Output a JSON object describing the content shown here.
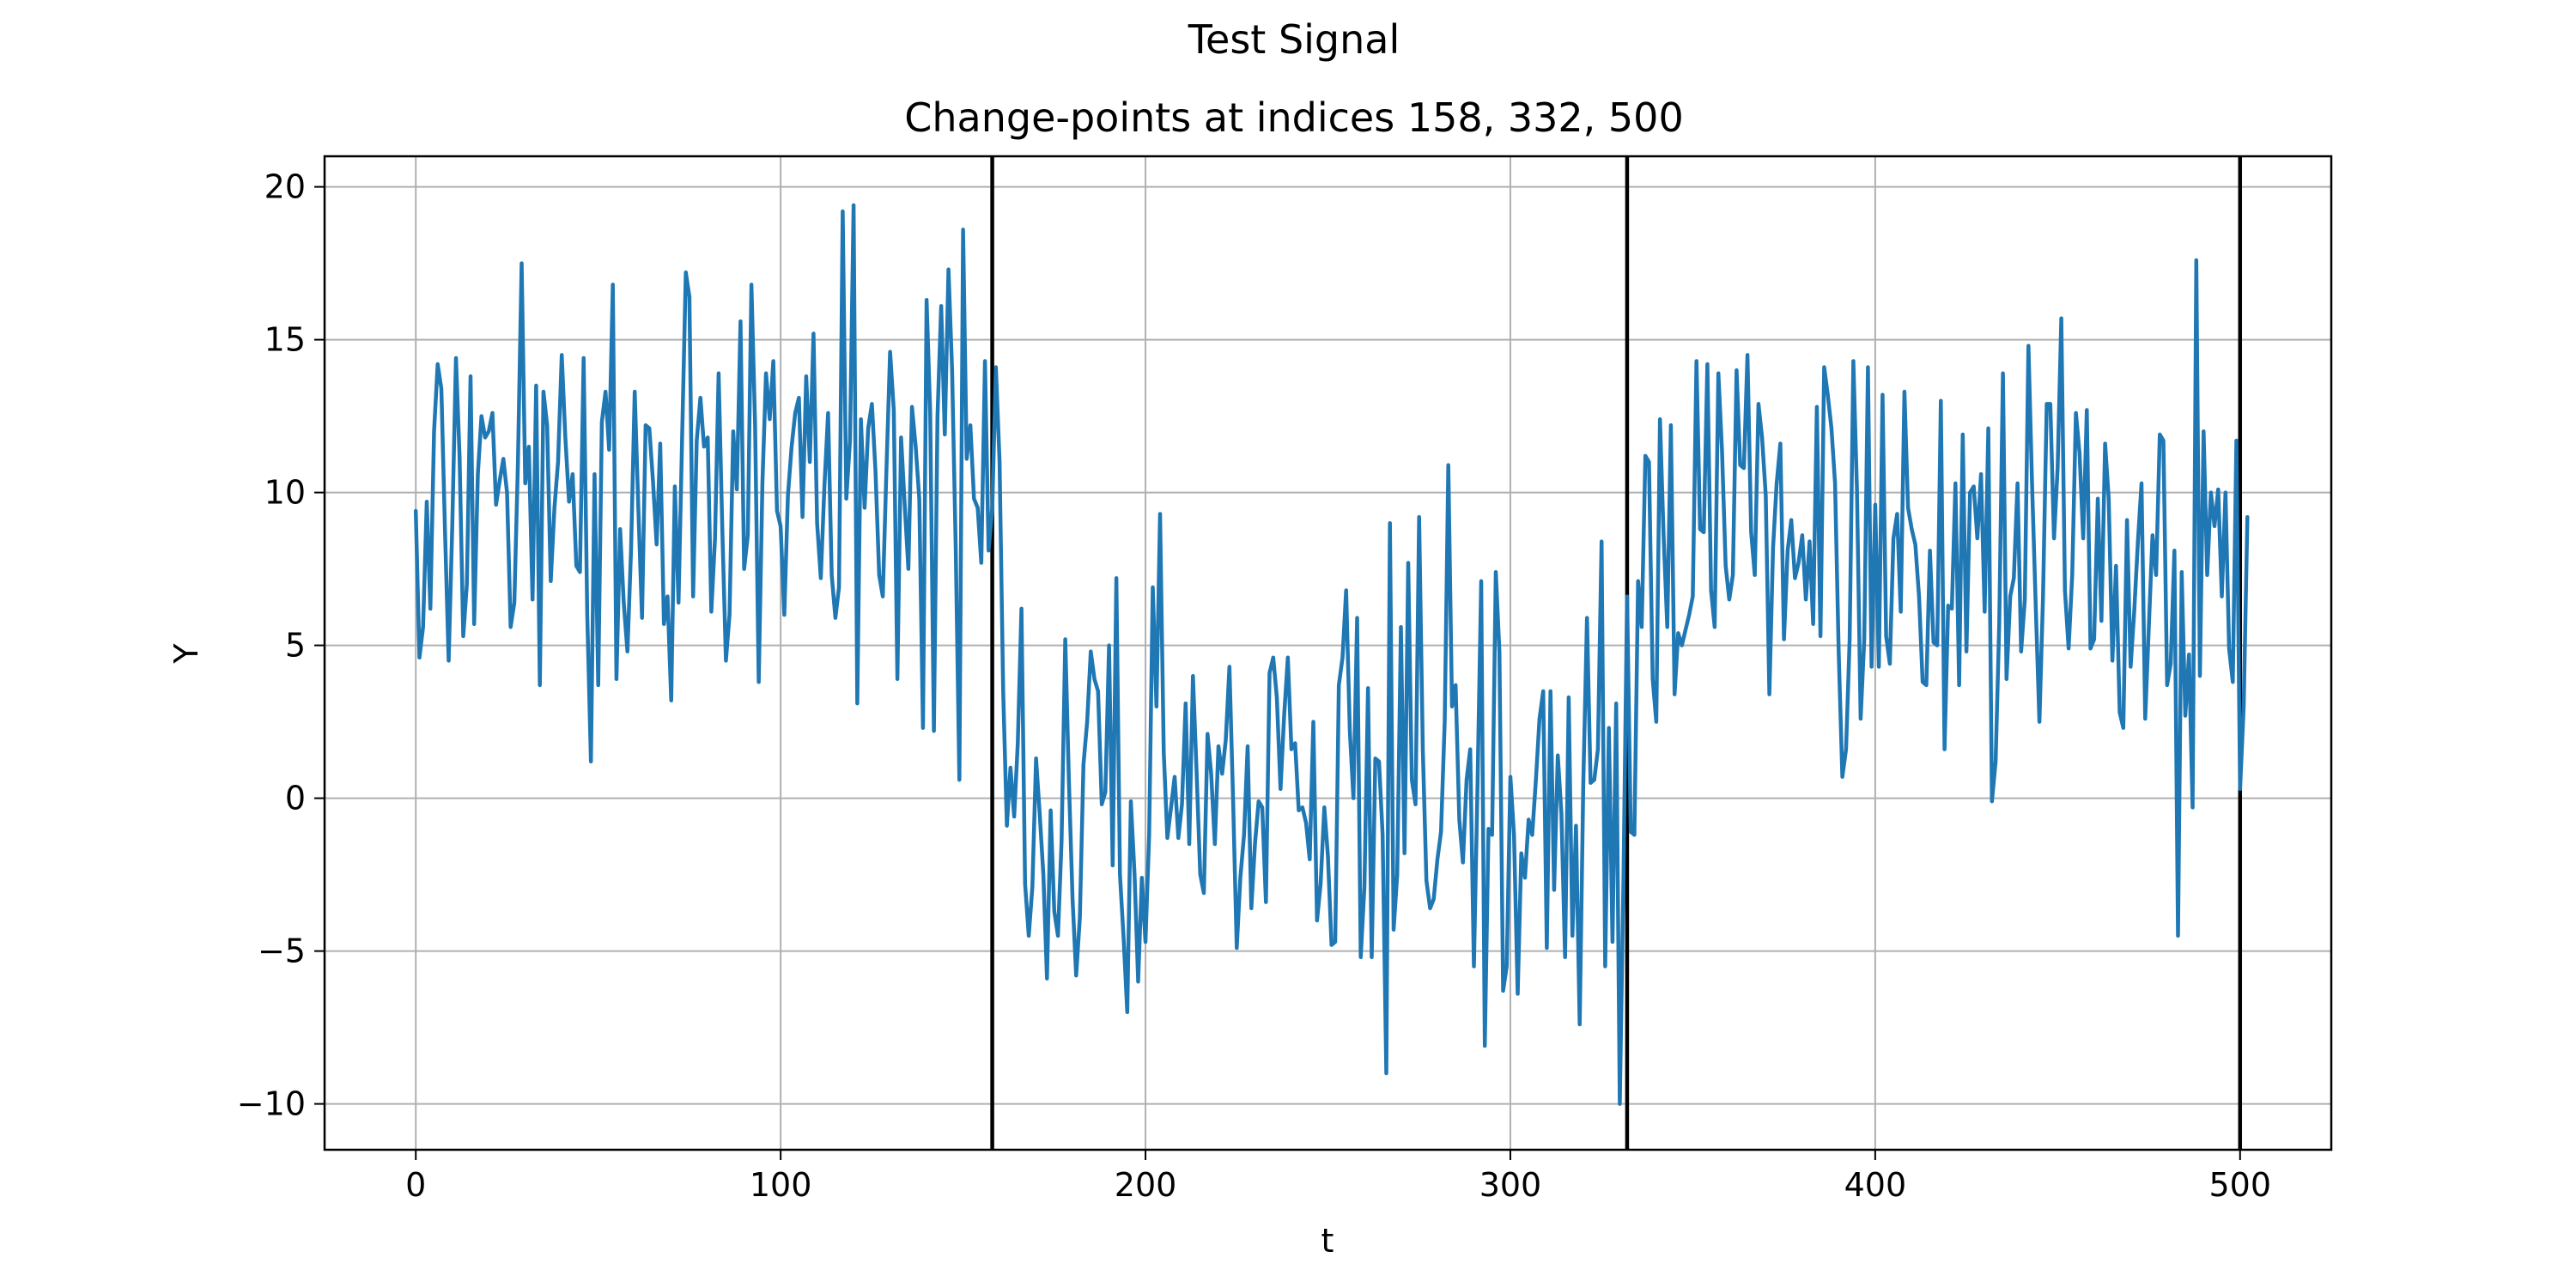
{
  "chart_data": {
    "type": "line",
    "suptitle": "Test Signal",
    "title": "Change-points at indices 158, 332, 500",
    "xlabel": "t",
    "ylabel": "Y",
    "xlim": [
      -25,
      525
    ],
    "ylim": [
      -11.5,
      21
    ],
    "x_ticks": [
      0,
      100,
      200,
      300,
      400,
      500
    ],
    "y_ticks": [
      -10,
      -5,
      0,
      5,
      10,
      15,
      20
    ],
    "x_tick_labels": [
      "0",
      "100",
      "200",
      "300",
      "400",
      "500"
    ],
    "y_tick_labels": [
      "−10",
      "−5",
      "0",
      "5",
      "10",
      "15",
      "20"
    ],
    "grid": true,
    "line_color": "#1f77b4",
    "changepoint_color": "#000000",
    "changepoints": [
      158,
      332,
      500
    ],
    "x_start": 0,
    "x_step": 1,
    "series": [
      {
        "values": [
          9.4,
          4.6,
          5.6,
          9.7,
          6.2,
          12.0,
          14.2,
          13.4,
          8.8,
          4.5,
          8.9,
          14.4,
          11.2,
          5.3,
          7.0,
          13.8,
          5.7,
          10.6,
          12.5,
          11.8,
          12.0,
          12.6,
          9.6,
          10.4,
          11.1,
          10.0,
          5.6,
          6.4,
          11.0,
          17.5,
          10.3,
          11.5,
          6.5,
          13.5,
          3.7,
          13.3,
          12.2,
          7.1,
          9.5,
          11.0,
          14.5,
          11.8,
          9.7,
          10.6,
          7.6,
          7.4,
          14.4,
          6.0,
          1.2,
          10.6,
          3.7,
          12.3,
          13.3,
          11.4,
          16.8,
          3.9,
          8.8,
          6.4,
          4.8,
          8.1,
          13.3,
          9.5,
          5.9,
          12.2,
          12.1,
          10.4,
          8.3,
          11.6,
          5.7,
          6.6,
          3.2,
          10.2,
          6.4,
          11.8,
          17.2,
          16.4,
          6.6,
          11.7,
          13.1,
          11.5,
          11.8,
          6.1,
          8.5,
          13.9,
          8.8,
          4.5,
          6.0,
          12.0,
          10.1,
          15.6,
          7.5,
          8.6,
          16.8,
          12.2,
          3.8,
          10.3,
          13.9,
          12.4,
          14.3,
          9.4,
          8.9,
          6.0,
          9.9,
          11.5,
          12.6,
          13.1,
          9.2,
          13.8,
          11.0,
          15.2,
          9.0,
          7.2,
          10.2,
          12.6,
          7.3,
          5.9,
          6.9,
          19.2,
          9.8,
          11.7,
          19.4,
          3.1,
          12.4,
          9.5,
          12.1,
          12.9,
          10.7,
          7.3,
          6.6,
          10.8,
          14.6,
          12.7,
          3.9,
          11.8,
          9.6,
          7.5,
          12.8,
          11.5,
          9.8,
          2.3,
          16.3,
          12.6,
          2.2,
          12.5,
          16.1,
          11.9,
          17.3,
          14.0,
          8.1,
          0.6,
          18.6,
          11.1,
          12.2,
          9.8,
          9.5,
          7.7,
          14.3,
          8.1,
          9.5,
          14.1,
          11.0,
          3.5,
          -0.9,
          1.0,
          -0.6,
          1.8,
          6.2,
          -2.8,
          -4.5,
          -2.9,
          1.3,
          -0.5,
          -2.5,
          -5.9,
          -0.4,
          -3.7,
          -4.5,
          -1.4,
          5.2,
          0.6,
          -3.3,
          -5.8,
          -3.9,
          1.1,
          2.5,
          4.8,
          3.9,
          3.5,
          -0.2,
          0.2,
          5.0,
          -2.2,
          7.2,
          -2.5,
          -4.6,
          -7.0,
          -0.1,
          -2.5,
          -6.0,
          -2.6,
          -4.7,
          -1.2,
          6.9,
          3.0,
          9.3,
          1.5,
          -1.3,
          -0.3,
          0.7,
          -1.3,
          -0.2,
          3.1,
          -1.5,
          4.0,
          0.9,
          -2.5,
          -3.1,
          2.1,
          0.8,
          -1.5,
          1.7,
          0.8,
          1.9,
          4.3,
          0.0,
          -4.9,
          -2.6,
          -1.2,
          1.7,
          -3.6,
          -1.5,
          -0.1,
          -0.3,
          -3.4,
          4.1,
          4.6,
          3.3,
          0.3,
          2.7,
          4.6,
          1.6,
          1.8,
          -0.4,
          -0.3,
          -0.8,
          -2.0,
          2.5,
          -4.0,
          -2.8,
          -0.3,
          -1.9,
          -4.8,
          -4.7,
          3.7,
          4.6,
          6.8,
          2.2,
          0.0,
          5.9,
          -5.2,
          -2.9,
          3.6,
          -5.2,
          1.3,
          1.2,
          -1.2,
          -9.0,
          9.0,
          -4.3,
          -2.5,
          5.6,
          -1.8,
          7.7,
          0.6,
          -0.2,
          9.2,
          1.6,
          -2.7,
          -3.6,
          -3.3,
          -2.0,
          -1.1,
          2.5,
          10.9,
          3.0,
          3.7,
          -0.7,
          -2.1,
          0.6,
          1.6,
          -5.5,
          0.4,
          7.1,
          -8.1,
          -1.0,
          -1.2,
          7.4,
          4.8,
          -6.3,
          -5.5,
          0.7,
          -1.2,
          -6.4,
          -1.8,
          -2.6,
          -0.7,
          -1.2,
          0.6,
          2.6,
          3.5,
          -4.9,
          3.5,
          -3.0,
          1.4,
          -0.5,
          -5.2,
          3.3,
          -4.5,
          -0.9,
          -7.4,
          0.5,
          5.9,
          0.5,
          0.6,
          1.6,
          8.4,
          -5.5,
          2.3,
          -4.7,
          3.1,
          -10.0,
          -2.6,
          6.6,
          -1.1,
          -1.2,
          7.1,
          5.6,
          11.2,
          11.0,
          3.9,
          2.5,
          12.4,
          8.6,
          5.6,
          12.2,
          3.4,
          5.4,
          5.0,
          5.5,
          6.0,
          6.6,
          14.3,
          8.8,
          8.7,
          14.2,
          6.8,
          5.6,
          13.9,
          11.4,
          7.6,
          6.5,
          7.3,
          14.0,
          10.9,
          10.8,
          14.5,
          8.7,
          7.3,
          12.9,
          11.8,
          9.9,
          3.4,
          8.2,
          10.3,
          11.6,
          5.2,
          8.1,
          9.1,
          7.2,
          7.7,
          8.6,
          6.5,
          8.4,
          5.7,
          12.8,
          5.3,
          14.1,
          13.2,
          12.1,
          10.3,
          4.7,
          0.7,
          1.6,
          5.2,
          14.3,
          10.1,
          2.6,
          5.2,
          14.1,
          4.3,
          9.6,
          4.3,
          13.2,
          5.3,
          4.4,
          8.5,
          9.3,
          6.1,
          13.3,
          9.5,
          8.8,
          8.3,
          6.6,
          3.8,
          3.7,
          8.1,
          5.1,
          5.0,
          13.0,
          1.6,
          6.3,
          6.2,
          10.3,
          3.7,
          11.9,
          4.8,
          10.0,
          10.2,
          8.5,
          10.6,
          6.1,
          12.1,
          -0.1,
          1.2,
          5.7,
          13.9,
          3.9,
          6.6,
          7.2,
          10.3,
          4.8,
          6.5,
          14.8,
          10.2,
          6.3,
          2.5,
          6.6,
          12.9,
          12.9,
          8.5,
          10.8,
          15.7,
          6.8,
          4.9,
          7.3,
          12.6,
          11.3,
          8.5,
          12.7,
          4.9,
          5.2,
          9.8,
          5.8,
          11.6,
          9.8,
          4.5,
          7.6,
          2.8,
          2.3,
          9.1,
          4.3,
          6.1,
          8.4,
          10.3,
          2.6,
          5.6,
          8.6,
          7.3,
          11.9,
          11.7,
          3.7,
          4.4,
          8.1,
          -4.5,
          7.4,
          2.7,
          4.7,
          -0.3,
          17.6,
          4.0,
          12.0,
          7.3,
          10.0,
          8.9,
          10.1,
          6.6,
          10.0,
          4.9,
          3.8,
          11.7,
          0.3,
          3.0,
          9.2
        ]
      }
    ]
  }
}
